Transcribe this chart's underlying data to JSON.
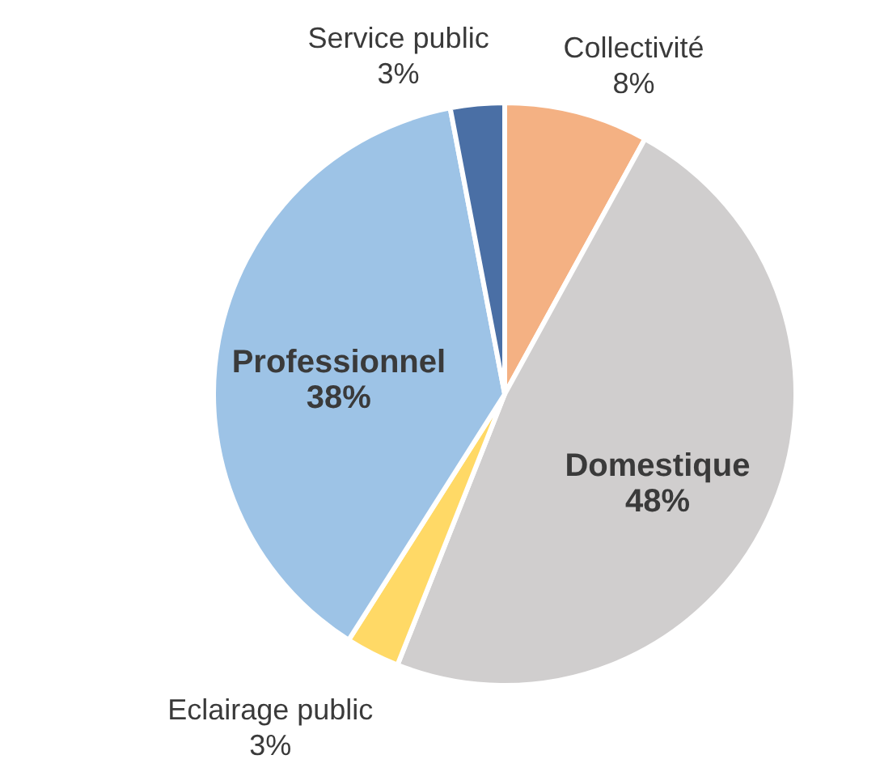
{
  "chart_data": {
    "type": "pie",
    "categories": [
      "Collectivité",
      "Domestique",
      "Eclairage public",
      "Professionnel",
      "Service public"
    ],
    "values": [
      8,
      48,
      3,
      38,
      3
    ],
    "value_labels": [
      "8%",
      "48%",
      "3%",
      "38%",
      "3%"
    ],
    "colors": [
      "#f4b183",
      "#d0cece",
      "#ffd966",
      "#9dc3e6",
      "#4a6fa5"
    ]
  }
}
